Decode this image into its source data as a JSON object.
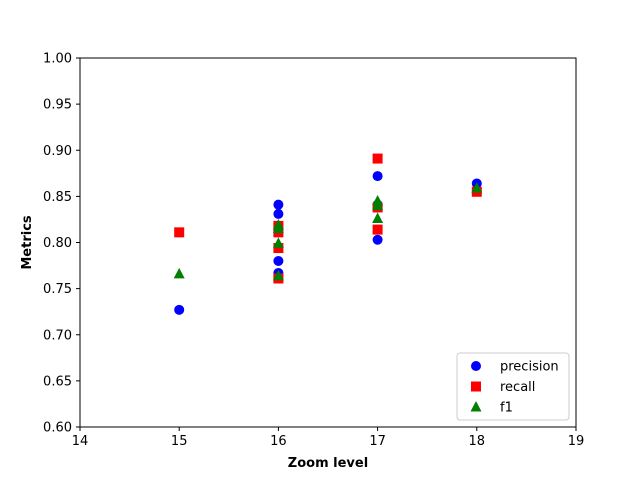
{
  "chart_data": {
    "type": "scatter",
    "title": "",
    "xlabel": "Zoom level",
    "ylabel": "Metrics",
    "xlim": [
      14,
      19
    ],
    "ylim": [
      0.6,
      1.0
    ],
    "xticks": [
      14,
      15,
      16,
      17,
      18,
      19
    ],
    "yticks": [
      0.6,
      0.65,
      0.7,
      0.75,
      0.8,
      0.85,
      0.9,
      0.95,
      1.0
    ],
    "grid": false,
    "legend_position": "lower-right",
    "series": [
      {
        "name": "precision",
        "marker": "circle",
        "color": "#0000ff",
        "points": [
          [
            15,
            0.727
          ],
          [
            16,
            0.841
          ],
          [
            16,
            0.831
          ],
          [
            16,
            0.78
          ],
          [
            16,
            0.767
          ],
          [
            16,
            0.764
          ],
          [
            17,
            0.872
          ],
          [
            17,
            0.841
          ],
          [
            17,
            0.838
          ],
          [
            17,
            0.803
          ],
          [
            18,
            0.864
          ]
        ]
      },
      {
        "name": "recall",
        "marker": "square",
        "color": "#ff0000",
        "points": [
          [
            15,
            0.811
          ],
          [
            16,
            0.818
          ],
          [
            16,
            0.811
          ],
          [
            16,
            0.794
          ],
          [
            16,
            0.761
          ],
          [
            17,
            0.891
          ],
          [
            17,
            0.838
          ],
          [
            17,
            0.814
          ],
          [
            18,
            0.855
          ]
        ]
      },
      {
        "name": "f1",
        "marker": "triangle",
        "color": "#008000",
        "points": [
          [
            15,
            0.766
          ],
          [
            16,
            0.819
          ],
          [
            16,
            0.815
          ],
          [
            16,
            0.799
          ],
          [
            16,
            0.764
          ],
          [
            17,
            0.845
          ],
          [
            17,
            0.84
          ],
          [
            17,
            0.826
          ],
          [
            18,
            0.859
          ]
        ]
      }
    ]
  }
}
